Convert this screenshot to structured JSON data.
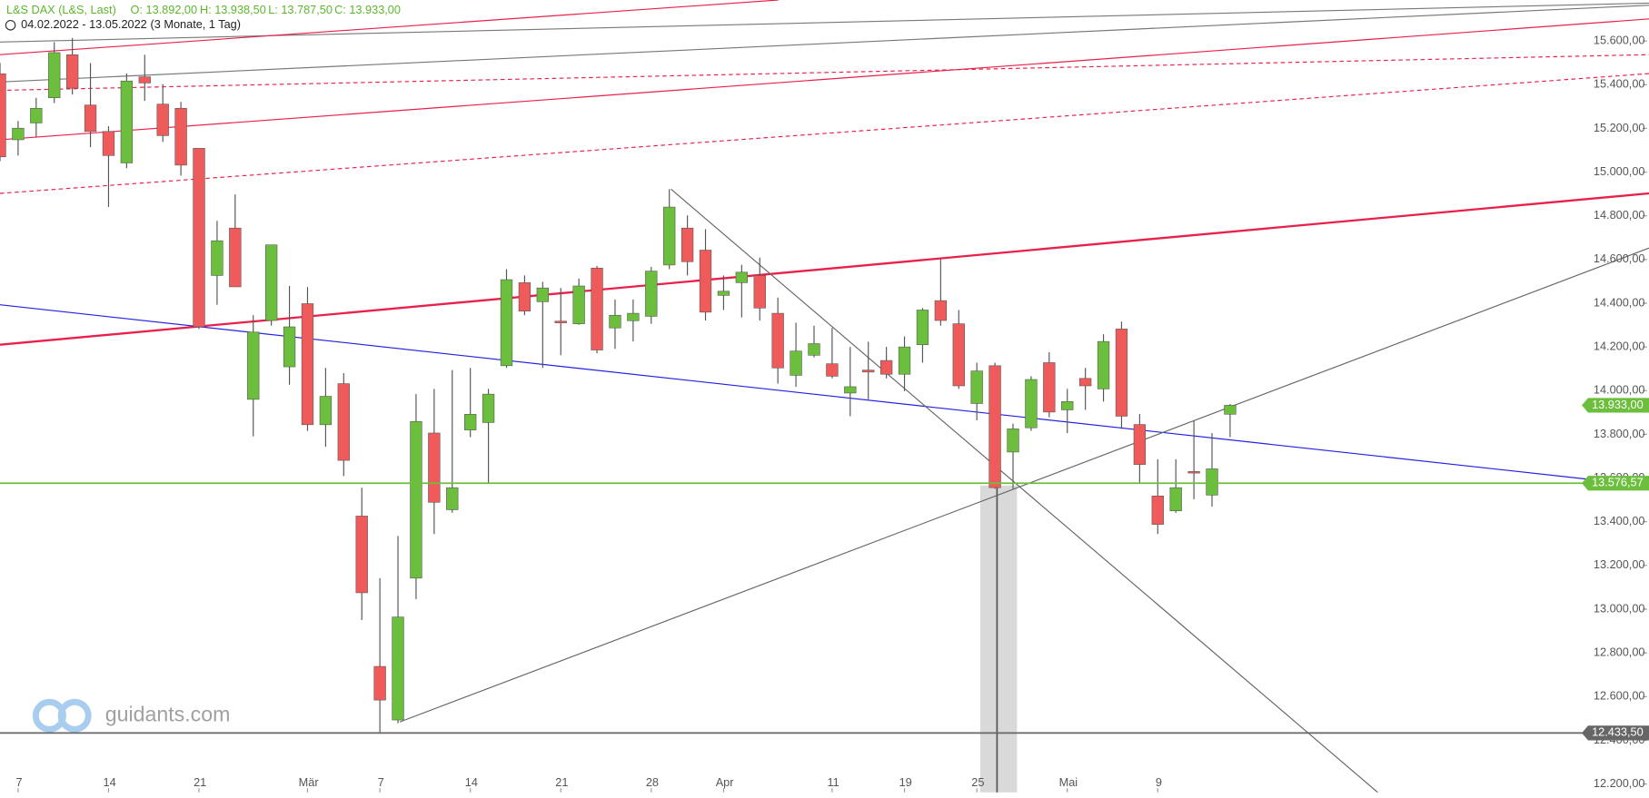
{
  "chart_data": {
    "type": "candlestick",
    "title": "L&S DAX (L&S, Last)",
    "header_values": [
      "O: 13.892,00",
      "H: 13.938,50",
      "L: 13.787,50",
      "C: 13.933,00"
    ],
    "subtitle": "04.02.2022 - 13.05.2022",
    "period": "(3 Monate, 1 Tag)",
    "watermark": "guidants.com",
    "categories": [
      null,
      "7",
      null,
      null,
      null,
      null,
      "14",
      null,
      null,
      null,
      null,
      "21",
      null,
      null,
      null,
      null,
      null,
      "Mär",
      null,
      null,
      null,
      "7",
      null,
      null,
      null,
      null,
      "14",
      null,
      null,
      null,
      null,
      "21",
      null,
      null,
      null,
      null,
      "28",
      null,
      null,
      null,
      "Apr",
      null,
      null,
      null,
      null,
      null,
      "11",
      null,
      null,
      null,
      "19",
      null,
      null,
      null,
      "25",
      null,
      null,
      null,
      null,
      "Mai",
      null,
      null,
      null,
      null,
      "9",
      null,
      null,
      null,
      null
    ],
    "open": [
      15450,
      15148,
      15225,
      15340,
      15537,
      15307,
      15186,
      15042,
      15436,
      15311,
      15292,
      15109,
      14527,
      14744,
      13960,
      14321,
      14109,
      14398,
      13844,
      14032,
      13426,
      12738,
      12493,
      13142,
      13806,
      13455,
      13820,
      13854,
      14114,
      14494,
      14407,
      14318,
      14306,
      14561,
      14287,
      14320,
      14340,
      14575,
      14744,
      14643,
      14436,
      14494,
      14527,
      14354,
      14070,
      14162,
      14123,
      13989,
      14094,
      14138,
      14075,
      14210,
      14412,
      14306,
      13941,
      14114,
      13719,
      13830,
      14128,
      13912,
      14056,
      14008,
      14282,
      13845,
      13518,
      13450,
      13630,
      13522,
      13892
    ],
    "high": [
      15500,
      15234,
      15340,
      15595,
      15614,
      15499,
      15210,
      15451,
      15537,
      15403,
      15321,
      15109,
      14777,
      14898,
      14345,
      14667,
      14479,
      14474,
      14104,
      14080,
      13556,
      13142,
      13335,
      13984,
      14008,
      14094,
      14104,
      14008,
      14556,
      14527,
      14498,
      14470,
      14513,
      14571,
      14417,
      14417,
      14566,
      14922,
      14802,
      14739,
      14527,
      14576,
      14609,
      14426,
      14311,
      14297,
      14287,
      14200,
      14224,
      14200,
      14248,
      14378,
      14604,
      14369,
      14128,
      14128,
      13849,
      14066,
      14176,
      14008,
      14104,
      14258,
      14316,
      13893,
      13686,
      13686,
      13864,
      13806,
      13938.5
    ],
    "low": [
      15050,
      15076,
      15162,
      15316,
      15355,
      15114,
      14840,
      15018,
      15326,
      15138,
      14984,
      14282,
      14393,
      14475,
      13791,
      14297,
      14027,
      13816,
      13743,
      13609,
      12950,
      12430,
      12478,
      13046,
      13344,
      13441,
      13787,
      13575,
      14104,
      14345,
      14104,
      14162,
      14301,
      14171,
      14191,
      14225,
      14306,
      14556,
      14527,
      14321,
      14369,
      14335,
      14321,
      14032,
      14017,
      14152,
      14056,
      13883,
      13960,
      14056,
      13998,
      14128,
      14297,
      14008,
      13864,
      13551,
      13551,
      13816,
      13878,
      13806,
      13912,
      13950,
      13825,
      13575,
      13344,
      13441,
      13503,
      13469,
      13787.5
    ],
    "close": [
      15070,
      15201,
      15292,
      15547,
      15384,
      15186,
      15076,
      15417,
      15408,
      15167,
      15032,
      14292,
      14686,
      14475,
      14268,
      14667,
      14292,
      13844,
      13974,
      13681,
      13075,
      12584,
      12964,
      13859,
      13489,
      13556,
      13892,
      13984,
      14508,
      14364,
      14470,
      14310,
      14479,
      14186,
      14345,
      14354,
      14547,
      14840,
      14590,
      14359,
      14455,
      14542,
      14378,
      14104,
      14181,
      14215,
      14066,
      14018,
      14085,
      14075,
      14200,
      14369,
      14321,
      14022,
      14090,
      13556,
      13825,
      14051,
      13902,
      13950,
      14022,
      14225,
      13883,
      13662,
      13388,
      13556,
      13625,
      13642,
      13933
    ],
    "up_color": "#6cbf3c",
    "down_color": "#ef5b5b",
    "ylim": [
      12161.5,
      15787.6
    ],
    "yticks": [
      {
        "value": 12200,
        "label": "12.200,00"
      },
      {
        "value": 12400,
        "label": "12.400,00"
      },
      {
        "value": 12600,
        "label": "12.600,00"
      },
      {
        "value": 12800,
        "label": "12.800,00"
      },
      {
        "value": 13000,
        "label": "13.000,00"
      },
      {
        "value": 13200,
        "label": "13.200,00"
      },
      {
        "value": 13400,
        "label": "13.400,00"
      },
      {
        "value": 13600,
        "label": "13.600,00"
      },
      {
        "value": 13800,
        "label": "13.800,00"
      },
      {
        "value": 14000,
        "label": "14.000,00"
      },
      {
        "value": 14200,
        "label": "14.200,00"
      },
      {
        "value": 14400,
        "label": "14.400,00"
      },
      {
        "value": 14600,
        "label": "14.600,00"
      },
      {
        "value": 14800,
        "label": "14.800,00"
      },
      {
        "value": 15000,
        "label": "15.000,00"
      },
      {
        "value": 15200,
        "label": "15.200,00"
      },
      {
        "value": 15400,
        "label": "15.400,00"
      },
      {
        "value": 15600,
        "label": "15.600,00"
      }
    ],
    "price_markers": [
      {
        "value": 13933,
        "label": "13.933,00",
        "color": "#6cbf3c",
        "line": false
      },
      {
        "value": 13576.57,
        "label": "13.576,57",
        "color": "#6cbf3c",
        "line": true
      },
      {
        "value": 12433.5,
        "label": "12.433,50",
        "color": "#666666",
        "line": true
      }
    ]
  }
}
